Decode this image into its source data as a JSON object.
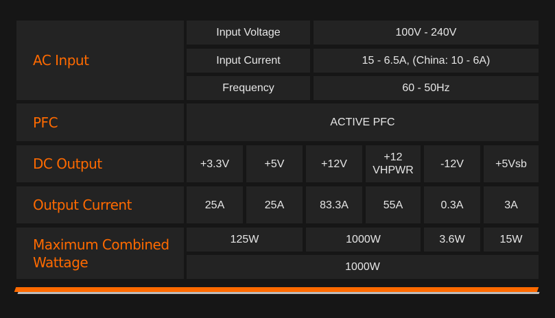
{
  "ac_input": {
    "label": "AC Input",
    "rows": [
      {
        "name": "Input Voltage",
        "value": "100V - 240V"
      },
      {
        "name": "Input Current",
        "value": "15 - 6.5A, (China: 10 - 6A)"
      },
      {
        "name": "Frequency",
        "value": "60 - 50Hz"
      }
    ]
  },
  "pfc": {
    "label": "PFC",
    "value": "ACTIVE PFC"
  },
  "dc_output": {
    "label": "DC Output",
    "values": [
      "+3.3V",
      "+5V",
      "+12V",
      "+12\nVHPWR",
      "-12V",
      "+5Vsb"
    ]
  },
  "output_current": {
    "label": "Output Current",
    "values": [
      "25A",
      "25A",
      "83.3A",
      "55A",
      "0.3A",
      "3A"
    ]
  },
  "max_wattage": {
    "label": "Maximum Combined Wattage",
    "values": [
      "125W",
      "1000W",
      "3.6W",
      "15W"
    ],
    "total": "1000W"
  },
  "colors": {
    "accent": "#ff6a00",
    "cell": "#232323",
    "background": "#161616"
  }
}
